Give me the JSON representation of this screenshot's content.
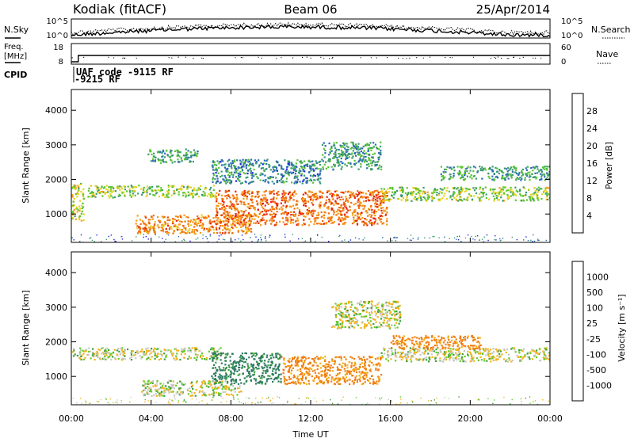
{
  "header": {
    "station": "Kodiak (fitACF)",
    "beam": "Beam 06",
    "date": "25/Apr/2014"
  },
  "top_panels": {
    "nsky_label": "N.Sky",
    "nsearch_label": "N.Search",
    "noise_ticks": [
      "10^5",
      "10^0"
    ],
    "noise_right_ticks": [
      "10^5",
      "10^0"
    ],
    "freq_label_line1": "Freq.",
    "freq_label_line2": "[MHz]",
    "freq_ticks": [
      "18",
      "8"
    ],
    "nave_label": "Nave",
    "nave_ticks": [
      "60",
      "0"
    ],
    "cpid_label": "CPID",
    "cpid_line1": "UAF code -9115 RF",
    "cpid_line2": "-9215 RF"
  },
  "x_axis": {
    "label": "Time UT",
    "ticks": [
      "00:00",
      "04:00",
      "08:00",
      "12:00",
      "16:00",
      "20:00",
      "00:00"
    ]
  },
  "chart_data": [
    {
      "type": "heatmap",
      "title": "",
      "xlabel": "Time UT",
      "ylabel": "Slant Range [km]",
      "xlim": [
        0,
        24
      ],
      "ylim": [
        180,
        4600
      ],
      "yticks": [
        "1000",
        "2000",
        "3000",
        "4000"
      ],
      "colorbar": {
        "label": "Power [dB]",
        "ticks": [
          "28",
          "24",
          "20",
          "16",
          "12",
          "8",
          "4"
        ],
        "range": [
          0,
          30
        ],
        "colors": [
          "#1a23e0",
          "#2c6cb5",
          "#3a9a70",
          "#59c431",
          "#e6d21e",
          "#f59a16",
          "#f06a0e",
          "#e8200c"
        ]
      },
      "features": [
        {
          "t_start": 0.0,
          "t_end": 0.6,
          "range": [
            800,
            1900
          ],
          "level": 16
        },
        {
          "t_start": 0.8,
          "t_end": 7.2,
          "range": [
            1500,
            1850
          ],
          "level": 14
        },
        {
          "t_start": 3.2,
          "t_end": 9.0,
          "range": [
            450,
            1000
          ],
          "level": 22
        },
        {
          "t_start": 7.2,
          "t_end": 15.8,
          "range": [
            700,
            1700
          ],
          "level": 24
        },
        {
          "t_start": 7.0,
          "t_end": 12.5,
          "range": [
            1900,
            2600
          ],
          "level": 8
        },
        {
          "t_start": 12.5,
          "t_end": 15.5,
          "range": [
            2300,
            3100
          ],
          "level": 9
        },
        {
          "t_start": 15.5,
          "t_end": 24.0,
          "range": [
            1400,
            1800
          ],
          "level": 14
        },
        {
          "t_start": 18.5,
          "t_end": 24.0,
          "range": [
            2000,
            2400
          ],
          "level": 10
        },
        {
          "t_start": 3.8,
          "t_end": 6.3,
          "range": [
            2500,
            2900
          ],
          "level": 10
        }
      ]
    },
    {
      "type": "heatmap",
      "title": "",
      "xlabel": "Time UT",
      "ylabel": "Slant Range [km]",
      "xlim": [
        0,
        24
      ],
      "ylim": [
        180,
        4600
      ],
      "yticks": [
        "1000",
        "2000",
        "3000",
        "4000"
      ],
      "colorbar": {
        "label": "Velocity [m s⁻¹]",
        "ticks": [
          "1000",
          "500",
          "100",
          "25",
          "-25",
          "-100",
          "-500",
          "-1000"
        ],
        "colors": [
          "#2346c8",
          "#2e7a62",
          "#3ba03a",
          "#62cc2a",
          "#c8c8c2",
          "#f2b21a",
          "#f07d10",
          "#e83212",
          "#dc1010"
        ]
      },
      "features": [
        {
          "t_start": 0.0,
          "t_end": 7.5,
          "range": [
            1500,
            1850
          ],
          "velocity": 0
        },
        {
          "t_start": 3.5,
          "t_end": 8.5,
          "range": [
            450,
            900
          ],
          "velocity": 0
        },
        {
          "t_start": 7.0,
          "t_end": 10.5,
          "range": [
            800,
            1700
          ],
          "velocity": 300
        },
        {
          "t_start": 10.5,
          "t_end": 15.5,
          "range": [
            800,
            1600
          ],
          "velocity": -150
        },
        {
          "t_start": 15.5,
          "t_end": 24.0,
          "range": [
            1450,
            1850
          ],
          "velocity": 0
        },
        {
          "t_start": 16.0,
          "t_end": 20.5,
          "range": [
            1800,
            2200
          ],
          "velocity": -150
        },
        {
          "t_start": 13.0,
          "t_end": 16.5,
          "range": [
            2400,
            3200
          ],
          "velocity": 0
        }
      ]
    }
  ]
}
